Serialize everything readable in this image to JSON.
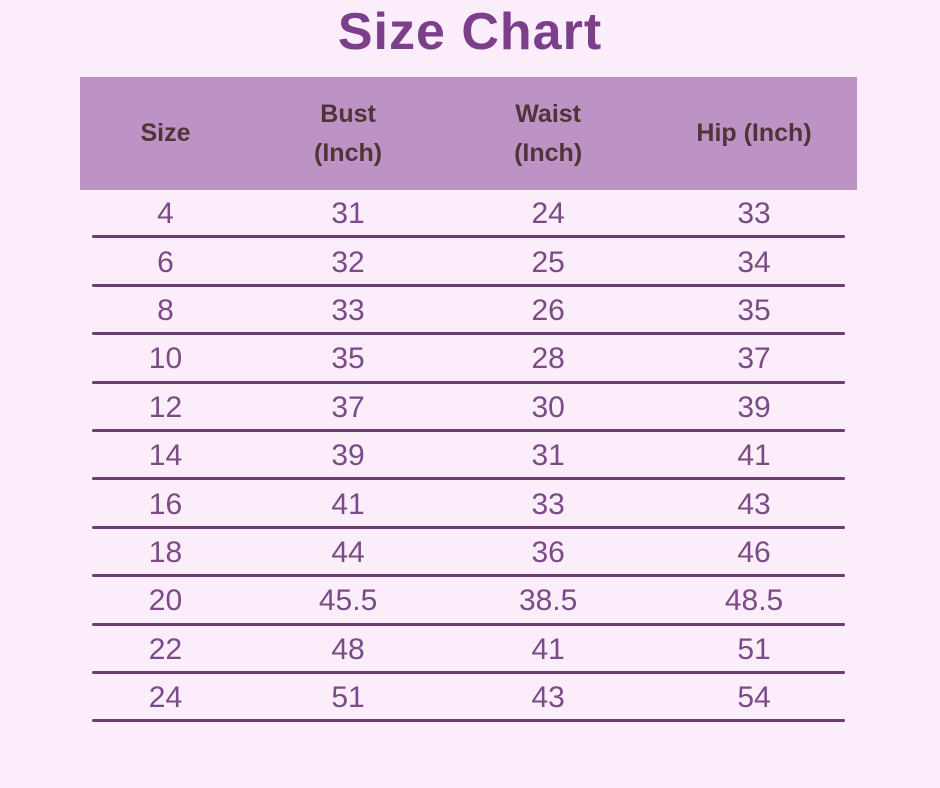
{
  "page": {
    "background": "#FBEDF9"
  },
  "title": {
    "text": "Size Chart",
    "color": "#7B3F8C"
  },
  "colors": {
    "header_bg": "#BD93C5",
    "header_text": "#4F3538",
    "cell_text": "#7B4B87",
    "row_line": "#6C3A74"
  },
  "table": {
    "header_lines": [
      [
        "Size"
      ],
      [
        "Bust",
        "(Inch)"
      ],
      [
        "Waist",
        "(Inch)"
      ],
      [
        "Hip (Inch)"
      ]
    ]
  },
  "chart_data": {
    "type": "table",
    "title": "Size Chart",
    "columns": [
      "Size",
      "Bust (Inch)",
      "Waist (Inch)",
      "Hip (Inch)"
    ],
    "rows": [
      [
        4,
        31,
        24,
        33
      ],
      [
        6,
        32,
        25,
        34
      ],
      [
        8,
        33,
        26,
        35
      ],
      [
        10,
        35,
        28,
        37
      ],
      [
        12,
        37,
        30,
        39
      ],
      [
        14,
        39,
        31,
        41
      ],
      [
        16,
        41,
        33,
        43
      ],
      [
        18,
        44,
        36,
        46
      ],
      [
        20,
        45.5,
        38.5,
        48.5
      ],
      [
        22,
        48,
        41,
        51
      ],
      [
        24,
        51,
        43,
        54
      ]
    ]
  }
}
